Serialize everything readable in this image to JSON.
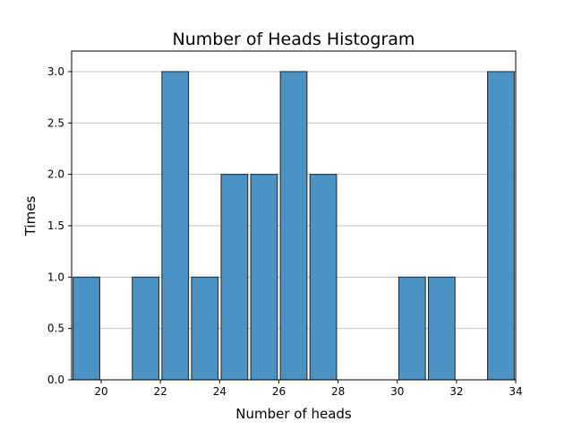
{
  "chart_data": {
    "type": "bar",
    "title": "Number of Heads Histogram",
    "xlabel": "Number of heads",
    "ylabel": "Times",
    "xlim": [
      19,
      34
    ],
    "ylim": [
      0,
      3.2
    ],
    "bin_width": 1.0,
    "bins": [
      {
        "x0": 19.0,
        "x1": 20.0,
        "count": 1
      },
      {
        "x0": 20.0,
        "x1": 21.0,
        "count": 0
      },
      {
        "x0": 21.0,
        "x1": 22.0,
        "count": 1
      },
      {
        "x0": 22.0,
        "x1": 23.0,
        "count": 3
      },
      {
        "x0": 23.0,
        "x1": 24.0,
        "count": 1
      },
      {
        "x0": 24.0,
        "x1": 25.0,
        "count": 2
      },
      {
        "x0": 25.0,
        "x1": 26.0,
        "count": 2
      },
      {
        "x0": 26.0,
        "x1": 27.0,
        "count": 3
      },
      {
        "x0": 27.0,
        "x1": 28.0,
        "count": 2
      },
      {
        "x0": 28.0,
        "x1": 29.0,
        "count": 0
      },
      {
        "x0": 29.0,
        "x1": 30.0,
        "count": 0
      },
      {
        "x0": 30.0,
        "x1": 31.0,
        "count": 1
      },
      {
        "x0": 31.0,
        "x1": 32.0,
        "count": 1
      },
      {
        "x0": 32.0,
        "x1": 33.0,
        "count": 0
      },
      {
        "x0": 33.0,
        "x1": 34.0,
        "count": 3
      }
    ],
    "x_ticks": [
      20,
      22,
      24,
      26,
      28,
      30,
      32,
      34
    ],
    "x_tick_labels": [
      "20",
      "22",
      "24",
      "26",
      "28",
      "30",
      "32",
      "34"
    ],
    "y_ticks": [
      0.0,
      0.5,
      1.0,
      1.5,
      2.0,
      2.5,
      3.0
    ],
    "y_tick_labels": [
      "0.0",
      "0.5",
      "1.0",
      "1.5",
      "2.0",
      "2.5",
      "3.0"
    ],
    "grid": "y-major",
    "bar_color": "#4C93C5",
    "bar_edge_color": "#222222",
    "grid_color": "#C0C0C0"
  }
}
